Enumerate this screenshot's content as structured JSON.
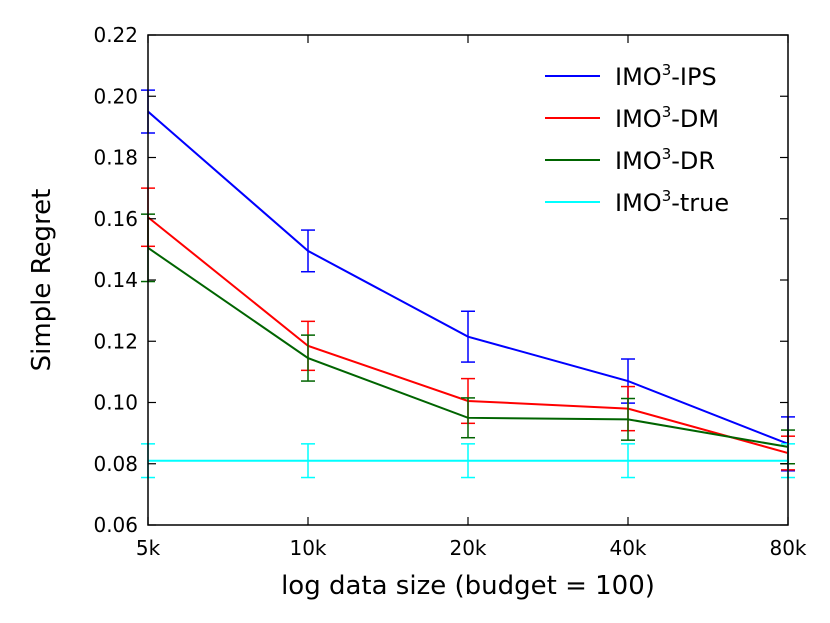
{
  "chart_data": {
    "type": "line",
    "x": [
      "5k",
      "10k",
      "20k",
      "40k",
      "80k"
    ],
    "xlabel": "log data size (budget = 100)",
    "ylabel": "Simple Regret",
    "ylim": [
      0.06,
      0.22
    ],
    "yticks": [
      "0.06",
      "0.08",
      "0.10",
      "0.12",
      "0.14",
      "0.16",
      "0.18",
      "0.20",
      "0.22"
    ],
    "grid": false,
    "legend_position": "top-right",
    "series": [
      {
        "name_base": "IMO",
        "name_sup": "3",
        "name_suffix": "-IPS",
        "color": "#0000ff",
        "values": [
          0.195,
          0.1495,
          0.1215,
          0.107,
          0.0865
        ],
        "err": [
          0.007,
          0.0068,
          0.0083,
          0.0072,
          0.0088
        ]
      },
      {
        "name_base": "IMO",
        "name_sup": "3",
        "name_suffix": "-DM",
        "color": "#ff0000",
        "values": [
          0.1605,
          0.1185,
          0.1005,
          0.098,
          0.0835
        ],
        "err": [
          0.0095,
          0.008,
          0.0073,
          0.0072,
          0.0055
        ]
      },
      {
        "name_base": "IMO",
        "name_sup": "3",
        "name_suffix": "-DR",
        "color": "#006400",
        "values": [
          0.1505,
          0.1145,
          0.095,
          0.0945,
          0.0855
        ],
        "err": [
          0.011,
          0.0075,
          0.0065,
          0.0068,
          0.0055
        ]
      },
      {
        "name_base": "IMO",
        "name_sup": "3",
        "name_suffix": "-true",
        "color": "#00ffff",
        "values": [
          0.081,
          0.081,
          0.081,
          0.081,
          0.081
        ],
        "err": [
          0.0055,
          0.0055,
          0.0055,
          0.0055,
          0.0055
        ]
      }
    ]
  }
}
